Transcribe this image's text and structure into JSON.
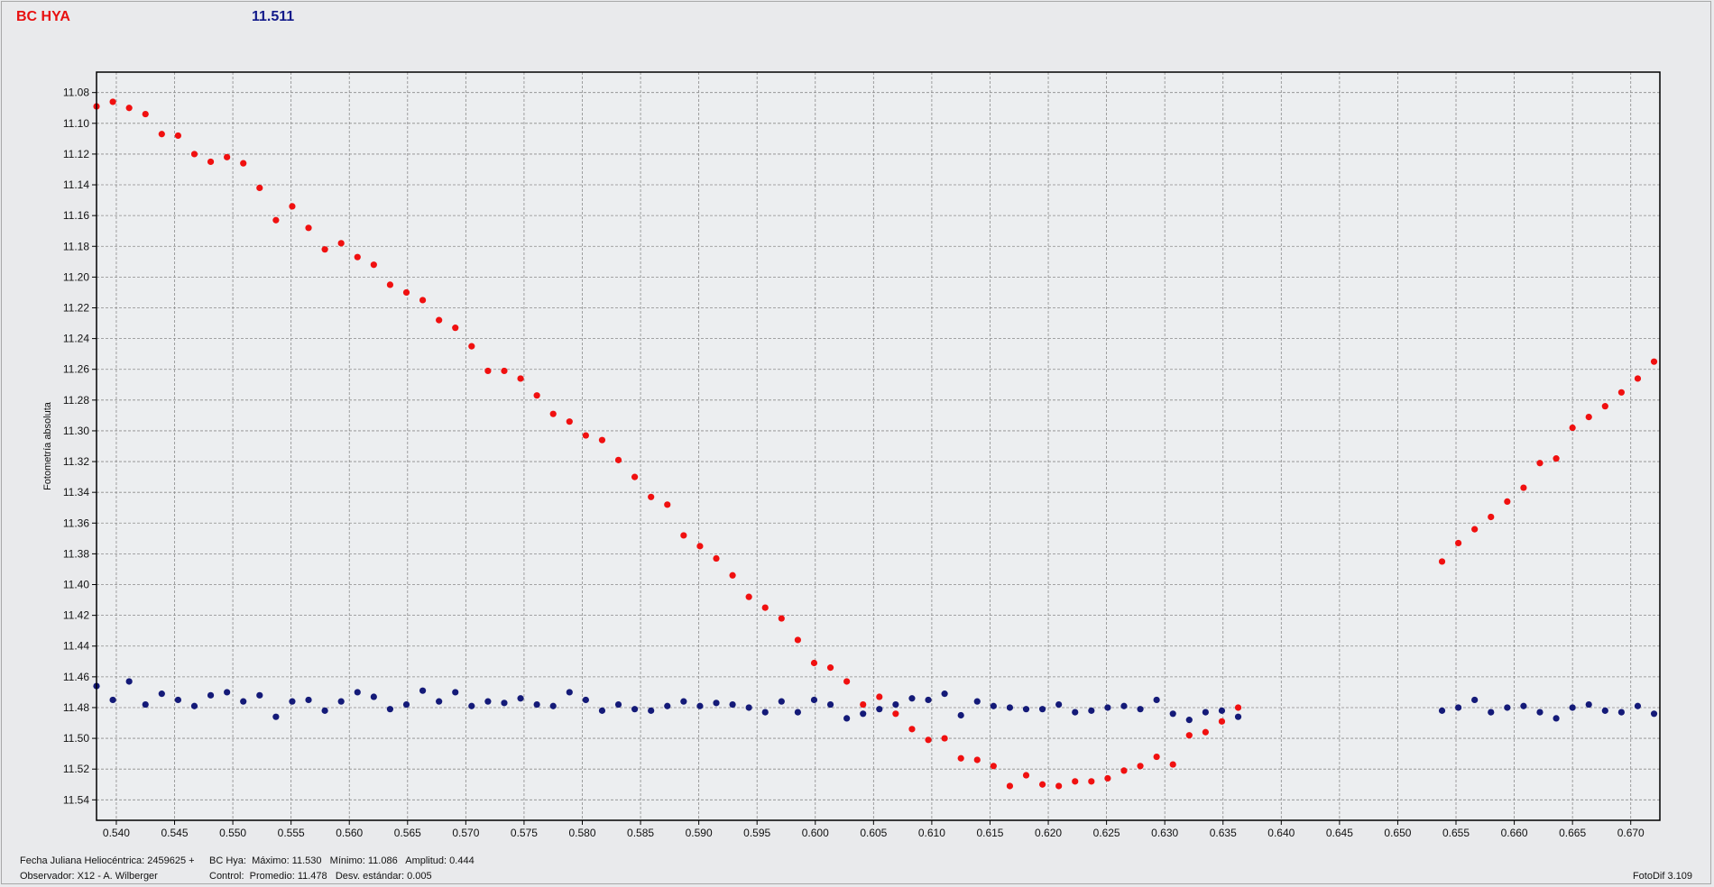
{
  "header": {
    "star_name": "BC HYA",
    "current_value": "11.511"
  },
  "footer": {
    "line1_left": "Fecha Juliana Heliocéntrica: 2459625 +",
    "line2_left": "Observador: X12 - A. Wilberger",
    "line1_right": "BC Hya:  Máximo: 11.530   Mínimo: 11.086   Amplitud: 0.444",
    "line2_right": "Control:  Promedio: 11.478   Desv. estándar: 0.005",
    "version": "FotoDif 3.109"
  },
  "colors": {
    "variable": "#f01010",
    "control": "#141a78",
    "star_name": "#e81010",
    "value": "#121a8a"
  },
  "chart_data": {
    "type": "scatter",
    "xlabel": "",
    "ylabel": "Fotometría absoluta",
    "xlim": [
      0.5383,
      0.6725
    ],
    "ylim": [
      11.0667,
      11.5533
    ],
    "y_inverted": true,
    "grid": true,
    "xticks": [
      "0.540",
      "0.545",
      "0.550",
      "0.555",
      "0.560",
      "0.565",
      "0.570",
      "0.575",
      "0.580",
      "0.585",
      "0.590",
      "0.595",
      "0.600",
      "0.605",
      "0.610",
      "0.615",
      "0.620",
      "0.625",
      "0.630",
      "0.635",
      "0.640",
      "0.645",
      "0.650",
      "0.655",
      "0.660",
      "0.665",
      "0.670"
    ],
    "yticks": [
      "11.08",
      "11.10",
      "11.12",
      "11.14",
      "11.16",
      "11.18",
      "11.20",
      "11.22",
      "11.24",
      "11.26",
      "11.28",
      "11.30",
      "11.32",
      "11.34",
      "11.36",
      "11.38",
      "11.40",
      "11.42",
      "11.44",
      "11.46",
      "11.48",
      "11.50",
      "11.52",
      "11.54"
    ],
    "series": [
      {
        "points": [
          [
            0.5383,
            11.089
          ],
          [
            0.5397,
            11.086
          ],
          [
            0.5411,
            11.09
          ],
          [
            0.5425,
            11.094
          ],
          [
            0.5439,
            11.107
          ],
          [
            0.5453,
            11.108
          ],
          [
            0.5467,
            11.12
          ],
          [
            0.5481,
            11.125
          ],
          [
            0.5495,
            11.122
          ],
          [
            0.5509,
            11.126
          ],
          [
            0.5523,
            11.142
          ],
          [
            0.5537,
            11.163
          ],
          [
            0.5551,
            11.154
          ],
          [
            0.5565,
            11.168
          ],
          [
            0.5579,
            11.182
          ],
          [
            0.5593,
            11.178
          ],
          [
            0.5607,
            11.187
          ],
          [
            0.5621,
            11.192
          ],
          [
            0.5635,
            11.205
          ],
          [
            0.5649,
            11.21
          ],
          [
            0.5663,
            11.215
          ],
          [
            0.5677,
            11.228
          ],
          [
            0.5691,
            11.233
          ],
          [
            0.5705,
            11.245
          ],
          [
            0.5719,
            11.261
          ],
          [
            0.5733,
            11.261
          ],
          [
            0.5747,
            11.266
          ],
          [
            0.5761,
            11.277
          ],
          [
            0.5775,
            11.289
          ],
          [
            0.5789,
            11.294
          ],
          [
            0.5803,
            11.303
          ],
          [
            0.5817,
            11.306
          ],
          [
            0.5831,
            11.319
          ],
          [
            0.5845,
            11.33
          ],
          [
            0.5859,
            11.343
          ],
          [
            0.5873,
            11.348
          ],
          [
            0.5887,
            11.368
          ],
          [
            0.5901,
            11.375
          ],
          [
            0.5915,
            11.383
          ],
          [
            0.5929,
            11.394
          ],
          [
            0.5943,
            11.408
          ],
          [
            0.5957,
            11.415
          ],
          [
            0.5971,
            11.422
          ],
          [
            0.5985,
            11.436
          ],
          [
            0.5999,
            11.451
          ],
          [
            0.6013,
            11.454
          ],
          [
            0.6027,
            11.463
          ],
          [
            0.6041,
            11.478
          ],
          [
            0.6055,
            11.473
          ],
          [
            0.6069,
            11.484
          ],
          [
            0.6083,
            11.494
          ],
          [
            0.6097,
            11.501
          ],
          [
            0.6111,
            11.5
          ],
          [
            0.6125,
            11.513
          ],
          [
            0.6139,
            11.514
          ],
          [
            0.6153,
            11.518
          ],
          [
            0.6167,
            11.531
          ],
          [
            0.6181,
            11.524
          ],
          [
            0.6195,
            11.53
          ],
          [
            0.6209,
            11.531
          ],
          [
            0.6223,
            11.528
          ],
          [
            0.6237,
            11.528
          ],
          [
            0.6251,
            11.526
          ],
          [
            0.6265,
            11.521
          ],
          [
            0.6279,
            11.518
          ],
          [
            0.6293,
            11.512
          ],
          [
            0.6307,
            11.517
          ],
          [
            0.6321,
            11.498
          ],
          [
            0.6335,
            11.496
          ],
          [
            0.6349,
            11.489
          ],
          [
            0.6363,
            11.48
          ],
          [
            0.6538,
            11.385
          ],
          [
            0.6552,
            11.373
          ],
          [
            0.6566,
            11.364
          ],
          [
            0.658,
            11.356
          ],
          [
            0.6594,
            11.346
          ],
          [
            0.6608,
            11.337
          ],
          [
            0.6622,
            11.321
          ],
          [
            0.6636,
            11.318
          ],
          [
            0.665,
            11.298
          ],
          [
            0.6664,
            11.291
          ],
          [
            0.6678,
            11.284
          ],
          [
            0.6692,
            11.275
          ],
          [
            0.6706,
            11.266
          ],
          [
            0.672,
            11.255
          ]
        ]
      },
      {
        "points": [
          [
            0.5383,
            11.466
          ],
          [
            0.5397,
            11.475
          ],
          [
            0.5411,
            11.463
          ],
          [
            0.5425,
            11.478
          ],
          [
            0.5439,
            11.471
          ],
          [
            0.5453,
            11.475
          ],
          [
            0.5467,
            11.479
          ],
          [
            0.5481,
            11.472
          ],
          [
            0.5495,
            11.47
          ],
          [
            0.5509,
            11.476
          ],
          [
            0.5523,
            11.472
          ],
          [
            0.5537,
            11.486
          ],
          [
            0.5551,
            11.476
          ],
          [
            0.5565,
            11.475
          ],
          [
            0.5579,
            11.482
          ],
          [
            0.5593,
            11.476
          ],
          [
            0.5607,
            11.47
          ],
          [
            0.5621,
            11.473
          ],
          [
            0.5635,
            11.481
          ],
          [
            0.5649,
            11.478
          ],
          [
            0.5663,
            11.469
          ],
          [
            0.5677,
            11.476
          ],
          [
            0.5691,
            11.47
          ],
          [
            0.5705,
            11.479
          ],
          [
            0.5719,
            11.476
          ],
          [
            0.5733,
            11.477
          ],
          [
            0.5747,
            11.474
          ],
          [
            0.5761,
            11.478
          ],
          [
            0.5775,
            11.479
          ],
          [
            0.5789,
            11.47
          ],
          [
            0.5803,
            11.475
          ],
          [
            0.5817,
            11.482
          ],
          [
            0.5831,
            11.478
          ],
          [
            0.5845,
            11.481
          ],
          [
            0.5859,
            11.482
          ],
          [
            0.5873,
            11.479
          ],
          [
            0.5887,
            11.476
          ],
          [
            0.5901,
            11.479
          ],
          [
            0.5915,
            11.477
          ],
          [
            0.5929,
            11.478
          ],
          [
            0.5943,
            11.48
          ],
          [
            0.5957,
            11.483
          ],
          [
            0.5971,
            11.476
          ],
          [
            0.5985,
            11.483
          ],
          [
            0.5999,
            11.475
          ],
          [
            0.6013,
            11.478
          ],
          [
            0.6027,
            11.487
          ],
          [
            0.6041,
            11.484
          ],
          [
            0.6055,
            11.481
          ],
          [
            0.6069,
            11.478
          ],
          [
            0.6083,
            11.474
          ],
          [
            0.6097,
            11.475
          ],
          [
            0.6111,
            11.471
          ],
          [
            0.6125,
            11.485
          ],
          [
            0.6139,
            11.476
          ],
          [
            0.6153,
            11.479
          ],
          [
            0.6167,
            11.48
          ],
          [
            0.6181,
            11.481
          ],
          [
            0.6195,
            11.481
          ],
          [
            0.6209,
            11.478
          ],
          [
            0.6223,
            11.483
          ],
          [
            0.6237,
            11.482
          ],
          [
            0.6251,
            11.48
          ],
          [
            0.6265,
            11.479
          ],
          [
            0.6279,
            11.481
          ],
          [
            0.6293,
            11.475
          ],
          [
            0.6307,
            11.484
          ],
          [
            0.6321,
            11.488
          ],
          [
            0.6335,
            11.483
          ],
          [
            0.6349,
            11.482
          ],
          [
            0.6363,
            11.486
          ],
          [
            0.6538,
            11.482
          ],
          [
            0.6552,
            11.48
          ],
          [
            0.6566,
            11.475
          ],
          [
            0.658,
            11.483
          ],
          [
            0.6594,
            11.48
          ],
          [
            0.6608,
            11.479
          ],
          [
            0.6622,
            11.483
          ],
          [
            0.6636,
            11.487
          ],
          [
            0.665,
            11.48
          ],
          [
            0.6664,
            11.478
          ],
          [
            0.6678,
            11.482
          ],
          [
            0.6692,
            11.483
          ],
          [
            0.6706,
            11.479
          ],
          [
            0.672,
            11.484
          ]
        ]
      }
    ]
  }
}
